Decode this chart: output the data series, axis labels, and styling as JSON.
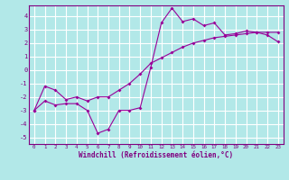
{
  "xlabel": "Windchill (Refroidissement éolien,°C)",
  "background_color": "#b2e8e8",
  "grid_color": "#ffffff",
  "line_color": "#990099",
  "xlim": [
    -0.5,
    23.5
  ],
  "ylim": [
    -5.5,
    4.8
  ],
  "xticks": [
    0,
    1,
    2,
    3,
    4,
    5,
    6,
    7,
    8,
    9,
    10,
    11,
    12,
    13,
    14,
    15,
    16,
    17,
    18,
    19,
    20,
    21,
    22,
    23
  ],
  "yticks": [
    -5,
    -4,
    -3,
    -2,
    -1,
    0,
    1,
    2,
    3,
    4
  ],
  "line1_x": [
    0,
    1,
    2,
    3,
    4,
    5,
    6,
    7,
    8,
    9,
    10,
    11,
    12,
    13,
    14,
    15,
    16,
    17,
    18,
    19,
    20,
    21,
    22,
    23
  ],
  "line1_y": [
    -3.0,
    -2.3,
    -2.6,
    -2.5,
    -2.5,
    -3.0,
    -4.7,
    -4.4,
    -3.0,
    -3.0,
    -2.8,
    0.2,
    3.5,
    4.6,
    3.6,
    3.8,
    3.3,
    3.5,
    2.6,
    2.7,
    2.9,
    2.8,
    2.6,
    2.1
  ],
  "line2_x": [
    0,
    1,
    2,
    3,
    4,
    5,
    6,
    7,
    8,
    9,
    10,
    11,
    12,
    13,
    14,
    15,
    16,
    17,
    18,
    19,
    20,
    21,
    22,
    23
  ],
  "line2_y": [
    -3.0,
    -1.2,
    -1.5,
    -2.2,
    -2.0,
    -2.3,
    -2.0,
    -2.0,
    -1.5,
    -1.0,
    -0.3,
    0.5,
    0.9,
    1.3,
    1.7,
    2.0,
    2.2,
    2.4,
    2.5,
    2.6,
    2.7,
    2.8,
    2.8,
    2.8
  ]
}
